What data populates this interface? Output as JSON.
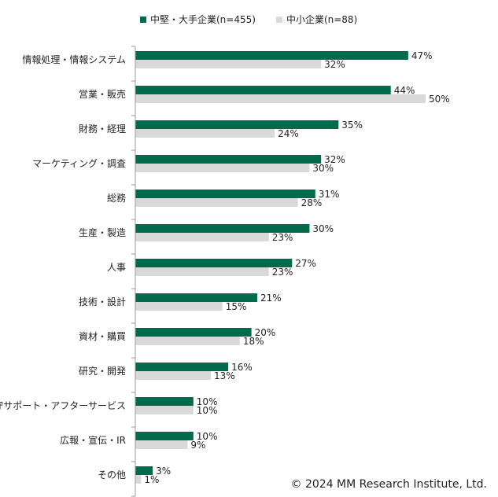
{
  "chart_data": {
    "type": "bar",
    "orientation": "horizontal",
    "categories": [
      "情報処理・情報システム",
      "営業・販売",
      "財務・経理",
      "マーケティング・調査",
      "総務",
      "生産・製造",
      "人事",
      "技術・設計",
      "資材・購買",
      "研究・開発",
      "保守サポート・アフターサービス",
      "広報・宣伝・IR",
      "その他"
    ],
    "series": [
      {
        "name": "中堅・大手企業(n=455)",
        "color": "#006B4A",
        "values": [
          47,
          44,
          35,
          32,
          31,
          30,
          27,
          21,
          20,
          16,
          10,
          10,
          3
        ]
      },
      {
        "name": "中小企業(n=88)",
        "color": "#D9D9D9",
        "values": [
          32,
          50,
          24,
          30,
          28,
          23,
          23,
          15,
          18,
          13,
          10,
          9,
          1
        ]
      }
    ],
    "value_suffix": "%",
    "xlim": [
      0,
      100
    ],
    "legend_position": "top"
  },
  "copyright": "© 2024 MM Research Institute, Ltd."
}
